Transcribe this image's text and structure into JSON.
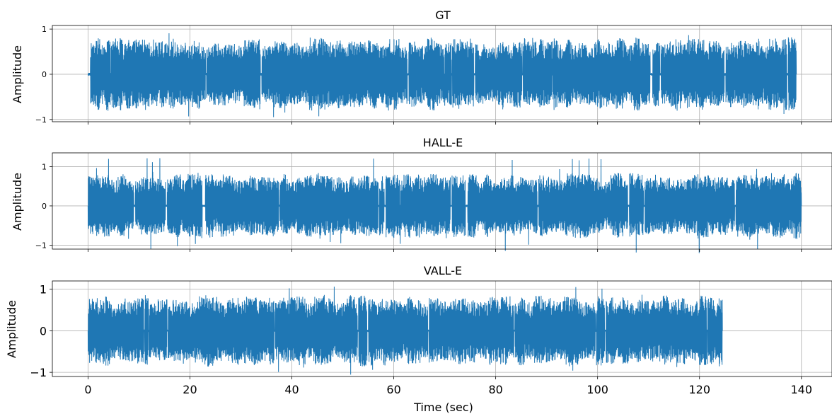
{
  "chart_data": [
    {
      "type": "line",
      "title": "GT",
      "ylabel": "Amplitude",
      "xlabel": "",
      "xlim": [
        -7,
        146
      ],
      "ylim": [
        -1.05,
        1.08
      ],
      "yticks": [
        -1,
        0,
        1
      ],
      "ytick_labels": [
        "−1",
        "0",
        "1"
      ],
      "xticks": [
        0,
        20,
        40,
        60,
        80,
        100,
        120,
        140
      ],
      "x_range": [
        0,
        139
      ],
      "envelope": 0.82,
      "peak": 0.98,
      "grid": true,
      "color": "#1f77b4",
      "series": [
        {
          "x_start": 0,
          "x_end": 139
        }
      ]
    },
    {
      "type": "line",
      "title": "HALL-E",
      "ylabel": "Amplitude",
      "xlabel": "",
      "xlim": [
        -7,
        146
      ],
      "ylim": [
        -1.1,
        1.35
      ],
      "yticks": [
        -1,
        0,
        1
      ],
      "ytick_labels": [
        "−1",
        "0",
        "1"
      ],
      "xticks": [
        0,
        20,
        40,
        60,
        80,
        100,
        120,
        140
      ],
      "x_range": [
        0,
        140
      ],
      "envelope": 0.85,
      "peak": 1.22,
      "grid": true,
      "color": "#1f77b4",
      "series": [
        {
          "x_start": 0,
          "x_end": 140
        }
      ]
    },
    {
      "type": "line",
      "title": "VALL-E",
      "ylabel": "Amplitude",
      "xlabel": "Time (sec)",
      "xlim": [
        -7,
        146
      ],
      "ylim": [
        -1.1,
        1.2
      ],
      "yticks": [
        -1,
        0,
        1
      ],
      "ytick_labels": [
        "−1",
        "0",
        "1"
      ],
      "xticks": [
        0,
        20,
        40,
        60,
        80,
        100,
        120,
        140
      ],
      "xtick_labels": [
        "0",
        "20",
        "40",
        "60",
        "80",
        "100",
        "120",
        "140"
      ],
      "x_range": [
        0,
        124.5
      ],
      "envelope": 0.88,
      "peak": 1.08,
      "grid": true,
      "color": "#1f77b4",
      "series": [
        {
          "x_start": 0,
          "x_end": 124.5
        }
      ]
    }
  ]
}
